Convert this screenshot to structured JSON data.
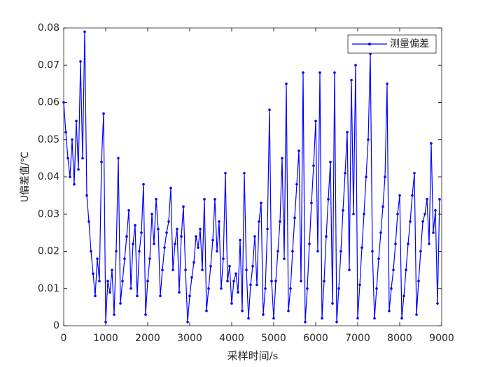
{
  "chart_data": {
    "type": "line",
    "xlabel": "采样时间/s",
    "ylabel": "U偏差值/℃",
    "xlim": [
      0,
      9000
    ],
    "xticks": [
      0,
      1000,
      2000,
      3000,
      4000,
      5000,
      6000,
      7000,
      8000,
      9000
    ],
    "ylim": [
      0,
      0.08
    ],
    "yticks": [
      0,
      0.01,
      0.02,
      0.03,
      0.04,
      0.05,
      0.06,
      0.07,
      0.08
    ],
    "legend": "upper right",
    "x": [
      0,
      50,
      100,
      150,
      200,
      250,
      300,
      350,
      400,
      450,
      500,
      550,
      600,
      650,
      700,
      750,
      800,
      850,
      900,
      950,
      1000,
      1050,
      1100,
      1150,
      1200,
      1250,
      1300,
      1350,
      1400,
      1450,
      1500,
      1550,
      1600,
      1650,
      1700,
      1750,
      1800,
      1850,
      1900,
      1950,
      2000,
      2050,
      2100,
      2150,
      2200,
      2250,
      2300,
      2350,
      2400,
      2450,
      2500,
      2550,
      2600,
      2650,
      2700,
      2750,
      2800,
      2850,
      2900,
      2950,
      3000,
      3050,
      3100,
      3150,
      3200,
      3250,
      3300,
      3350,
      3400,
      3450,
      3500,
      3550,
      3600,
      3650,
      3700,
      3750,
      3800,
      3850,
      3900,
      3950,
      4000,
      4050,
      4100,
      4150,
      4200,
      4250,
      4300,
      4350,
      4400,
      4450,
      4500,
      4550,
      4600,
      4650,
      4700,
      4750,
      4800,
      4850,
      4900,
      4950,
      5000,
      5050,
      5100,
      5150,
      5200,
      5250,
      5300,
      5350,
      5400,
      5450,
      5500,
      5550,
      5600,
      5650,
      5700,
      5750,
      5800,
      5850,
      5900,
      5950,
      6000,
      6050,
      6100,
      6150,
      6200,
      6250,
      6300,
      6350,
      6400,
      6450,
      6500,
      6550,
      6600,
      6650,
      6700,
      6750,
      6800,
      6850,
      6900,
      6950,
      7000,
      7050,
      7100,
      7150,
      7200,
      7250,
      7300,
      7350,
      7400,
      7450,
      7500,
      7550,
      7600,
      7650,
      7700,
      7750,
      7800,
      7850,
      7900,
      7950,
      8000,
      8050,
      8100,
      8150,
      8200,
      8250,
      8300,
      8350,
      8400,
      8450,
      8500,
      8550,
      8600,
      8650,
      8700,
      8750,
      8800,
      8850,
      8900,
      8950
    ],
    "series": [
      {
        "name": "测量偏差",
        "color": "#0000ff",
        "values": [
          0.06,
          0.052,
          0.045,
          0.04,
          0.05,
          0.038,
          0.055,
          0.042,
          0.071,
          0.045,
          0.079,
          0.035,
          0.028,
          0.02,
          0.014,
          0.008,
          0.018,
          0.012,
          0.044,
          0.057,
          0.001,
          0.012,
          0.009,
          0.015,
          0.003,
          0.02,
          0.045,
          0.006,
          0.012,
          0.018,
          0.024,
          0.031,
          0.01,
          0.022,
          0.027,
          0.008,
          0.02,
          0.025,
          0.038,
          0.003,
          0.012,
          0.018,
          0.03,
          0.022,
          0.034,
          0.026,
          0.008,
          0.015,
          0.021,
          0.025,
          0.028,
          0.037,
          0.015,
          0.022,
          0.026,
          0.009,
          0.024,
          0.032,
          0.015,
          0.001,
          0.008,
          0.013,
          0.017,
          0.024,
          0.021,
          0.026,
          0.015,
          0.034,
          0.004,
          0.01,
          0.016,
          0.023,
          0.034,
          0.02,
          0.028,
          0.01,
          0.018,
          0.041,
          0.012,
          0.016,
          0.006,
          0.012,
          0.014,
          0.009,
          0.023,
          0.004,
          0.041,
          0.015,
          0.002,
          0.011,
          0.016,
          0.024,
          0.011,
          0.028,
          0.033,
          0.003,
          0.01,
          0.026,
          0.058,
          0.012,
          0.002,
          0.012,
          0.02,
          0.028,
          0.045,
          0.018,
          0.065,
          0.004,
          0.01,
          0.02,
          0.029,
          0.038,
          0.047,
          0.012,
          0.068,
          0.001,
          0.01,
          0.022,
          0.033,
          0.043,
          0.055,
          0.02,
          0.068,
          0.002,
          0.012,
          0.024,
          0.034,
          0.044,
          0.006,
          0.068,
          0.001,
          0.01,
          0.02,
          0.031,
          0.041,
          0.052,
          0.015,
          0.066,
          0.03,
          0.07,
          0.002,
          0.011,
          0.021,
          0.03,
          0.04,
          0.05,
          0.073,
          0.02,
          0.002,
          0.01,
          0.018,
          0.025,
          0.032,
          0.04,
          0.065,
          0.004,
          0.01,
          0.015,
          0.022,
          0.03,
          0.035,
          0.002,
          0.008,
          0.015,
          0.022,
          0.028,
          0.035,
          0.041,
          0.003,
          0.012,
          0.02,
          0.028,
          0.03,
          0.034,
          0.022,
          0.049,
          0.025,
          0.031,
          0.006,
          0.034
        ]
      }
    ]
  }
}
